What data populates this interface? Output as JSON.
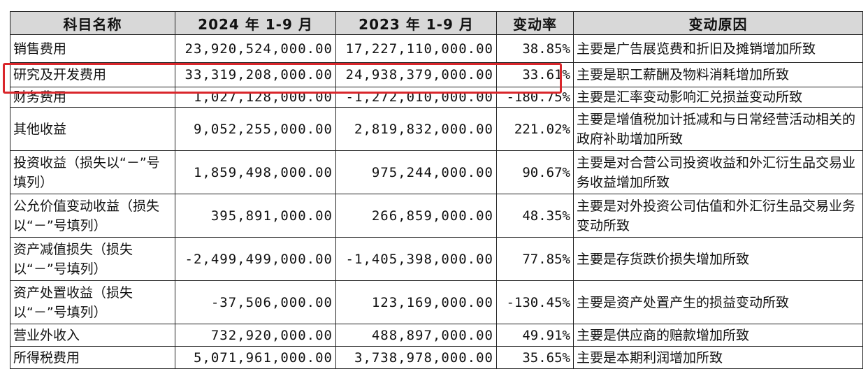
{
  "headers": {
    "subject": "科目名称",
    "period_2024": "2024 年 1-9 月",
    "period_2023": "2023 年 1-9 月",
    "change_rate": "变动率",
    "reason": "变动原因"
  },
  "rows": [
    {
      "name": "销售费用",
      "v2024": "23,920,524,000.00",
      "v2023": "17,227,110,000.00",
      "rate": "38.85%",
      "reason": "主要是广告展览费和折旧及摊销增加所致"
    },
    {
      "name": "研究及开发费用",
      "v2024": "33,319,208,000.00",
      "v2023": "24,938,379,000.00",
      "rate": "33.61%",
      "reason": "主要是职工薪酬及物料消耗增加所致"
    },
    {
      "name": "财务费用",
      "v2024": "1,027,128,000.00",
      "v2023": "-1,272,010,000.00",
      "rate": "-180.75%",
      "reason": "主要是汇率变动影响汇兑损益变动所致"
    },
    {
      "name": "其他收益",
      "v2024": "9,052,255,000.00",
      "v2023": "2,819,832,000.00",
      "rate": "221.02%",
      "reason": "主要是增值税加计抵减和与日常经营活动相关的政府补助增加所致"
    },
    {
      "name": "投资收益（损失以“－”号填列）",
      "v2024": "1,859,498,000.00",
      "v2023": "975,244,000.00",
      "rate": "90.67%",
      "reason": "主要是对合营公司投资收益和外汇衍生品交易业务收益增加所致"
    },
    {
      "name": "公允价值变动收益（损失以“－”号填列）",
      "v2024": "395,891,000.00",
      "v2023": "266,859,000.00",
      "rate": "48.35%",
      "reason": "主要是对外投资公司估值和外汇衍生品交易业务变动所致"
    },
    {
      "name": "资产减值损失（损失以“－”号填列）",
      "v2024": "-2,499,499,000.00",
      "v2023": "-1,405,398,000.00",
      "rate": "77.85%",
      "reason": "主要是存货跌价损失增加所致"
    },
    {
      "name": "资产处置收益（损失以“－”号填列）",
      "v2024": "-37,506,000.00",
      "v2023": "123,169,000.00",
      "rate": "-130.45%",
      "reason": "主要是资产处置产生的损益变动所致"
    },
    {
      "name": "营业外收入",
      "v2024": "732,920,000.00",
      "v2023": "488,897,000.00",
      "rate": "49.91%",
      "reason": "主要是供应商的赔款增加所致"
    },
    {
      "name": "所得税费用",
      "v2024": "5,071,961,000.00",
      "v2023": "3,738,978,000.00",
      "rate": "35.65%",
      "reason": "主要是本期利润增加所致"
    }
  ],
  "highlight_color": "#d9262b"
}
